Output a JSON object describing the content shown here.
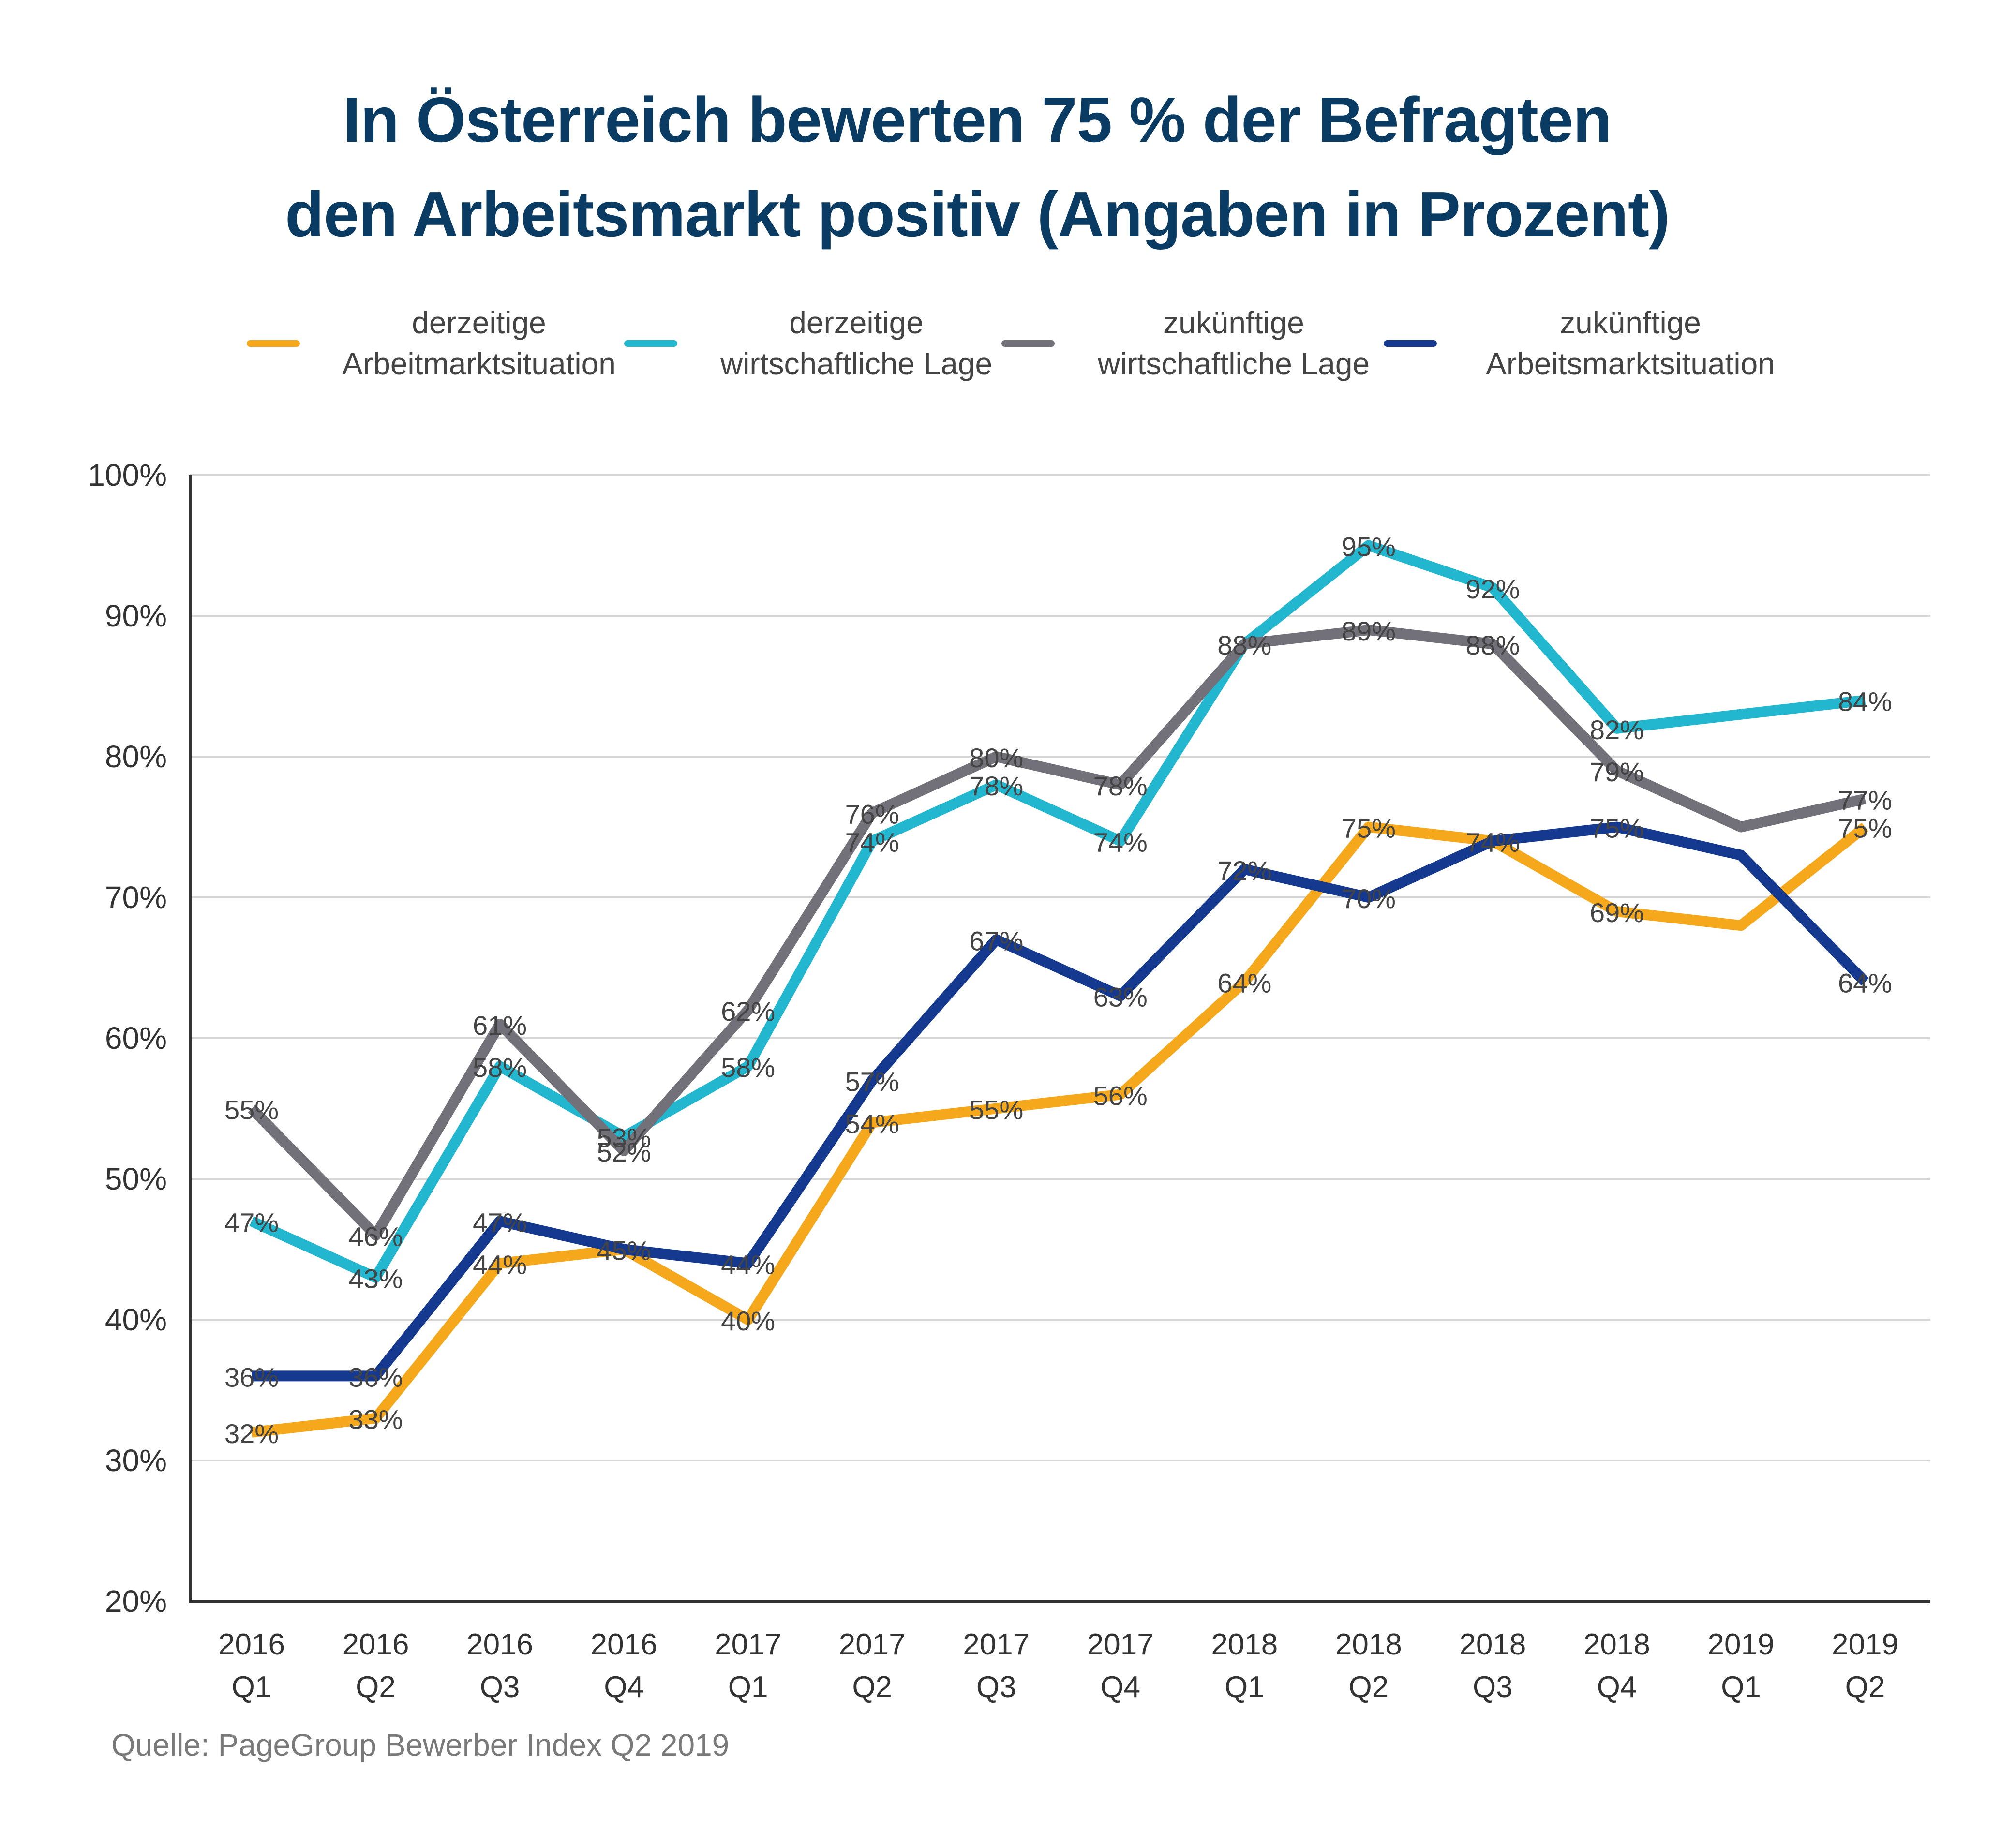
{
  "title_lines": [
    "In Österreich bewerten 75 % der Befragten",
    "den Arbeitsmarkt positiv (Angaben in Prozent)"
  ],
  "source": "Quelle: PageGroup Bewerber Index Q2 2019",
  "legend": [
    {
      "line1": "derzeitige",
      "line2": "Arbeitmarktsituation",
      "color": "#f5a81c"
    },
    {
      "line1": "derzeitige",
      "line2": "wirtschaftliche Lage",
      "color": "#22b6cf"
    },
    {
      "line1": "zukünftige",
      "line2": "wirtschaftliche Lage",
      "color": "#727179"
    },
    {
      "line1": "zukünftige",
      "line2": "Arbeitsmarktsituation",
      "color": "#14398e"
    }
  ],
  "chart_data": {
    "type": "line",
    "categories": [
      [
        "2016",
        "Q1"
      ],
      [
        "2016",
        "Q2"
      ],
      [
        "2016",
        "Q3"
      ],
      [
        "2016",
        "Q4"
      ],
      [
        "2017",
        "Q1"
      ],
      [
        "2017",
        "Q2"
      ],
      [
        "2017",
        "Q3"
      ],
      [
        "2017",
        "Q4"
      ],
      [
        "2018",
        "Q1"
      ],
      [
        "2018",
        "Q2"
      ],
      [
        "2018",
        "Q3"
      ],
      [
        "2018",
        "Q4"
      ],
      [
        "2019",
        "Q1"
      ],
      [
        "2019",
        "Q2"
      ]
    ],
    "ylim": [
      20,
      100
    ],
    "yticks": [
      20,
      30,
      40,
      50,
      60,
      70,
      80,
      90,
      100
    ],
    "ytick_suffix": "%",
    "grid": true,
    "series": [
      {
        "name": "derzeitige Arbeitmarktsituation",
        "color": "#f5a81c",
        "values": [
          32,
          33,
          44,
          45,
          40,
          54,
          55,
          56,
          64,
          75,
          74,
          69,
          68,
          75
        ],
        "labels": [
          32,
          33,
          44,
          null,
          40,
          54,
          55,
          56,
          64,
          75,
          null,
          69,
          null,
          75
        ]
      },
      {
        "name": "derzeitige wirtschaftliche Lage",
        "color": "#22b6cf",
        "values": [
          47,
          43,
          58,
          53,
          58,
          74,
          78,
          74,
          88,
          95,
          92,
          82,
          83,
          84
        ],
        "labels": [
          47,
          43,
          58,
          53,
          58,
          74,
          78,
          74,
          null,
          95,
          92,
          82,
          null,
          84
        ]
      },
      {
        "name": "zukünftige wirtschaftliche Lage",
        "color": "#727179",
        "values": [
          55,
          46,
          61,
          52,
          62,
          76,
          80,
          78,
          88,
          89,
          88,
          79,
          75,
          77
        ],
        "labels": [
          55,
          46,
          61,
          52,
          62,
          76,
          80,
          78,
          88,
          89,
          88,
          79,
          null,
          77
        ]
      },
      {
        "name": "zukünftige Arbeitsmarktsituation",
        "color": "#14398e",
        "values": [
          36,
          36,
          47,
          45,
          44,
          57,
          67,
          63,
          72,
          70,
          74,
          75,
          73,
          64
        ],
        "labels": [
          36,
          36,
          47,
          45,
          44,
          57,
          67,
          63,
          72,
          70,
          74,
          75,
          null,
          64
        ]
      }
    ]
  }
}
